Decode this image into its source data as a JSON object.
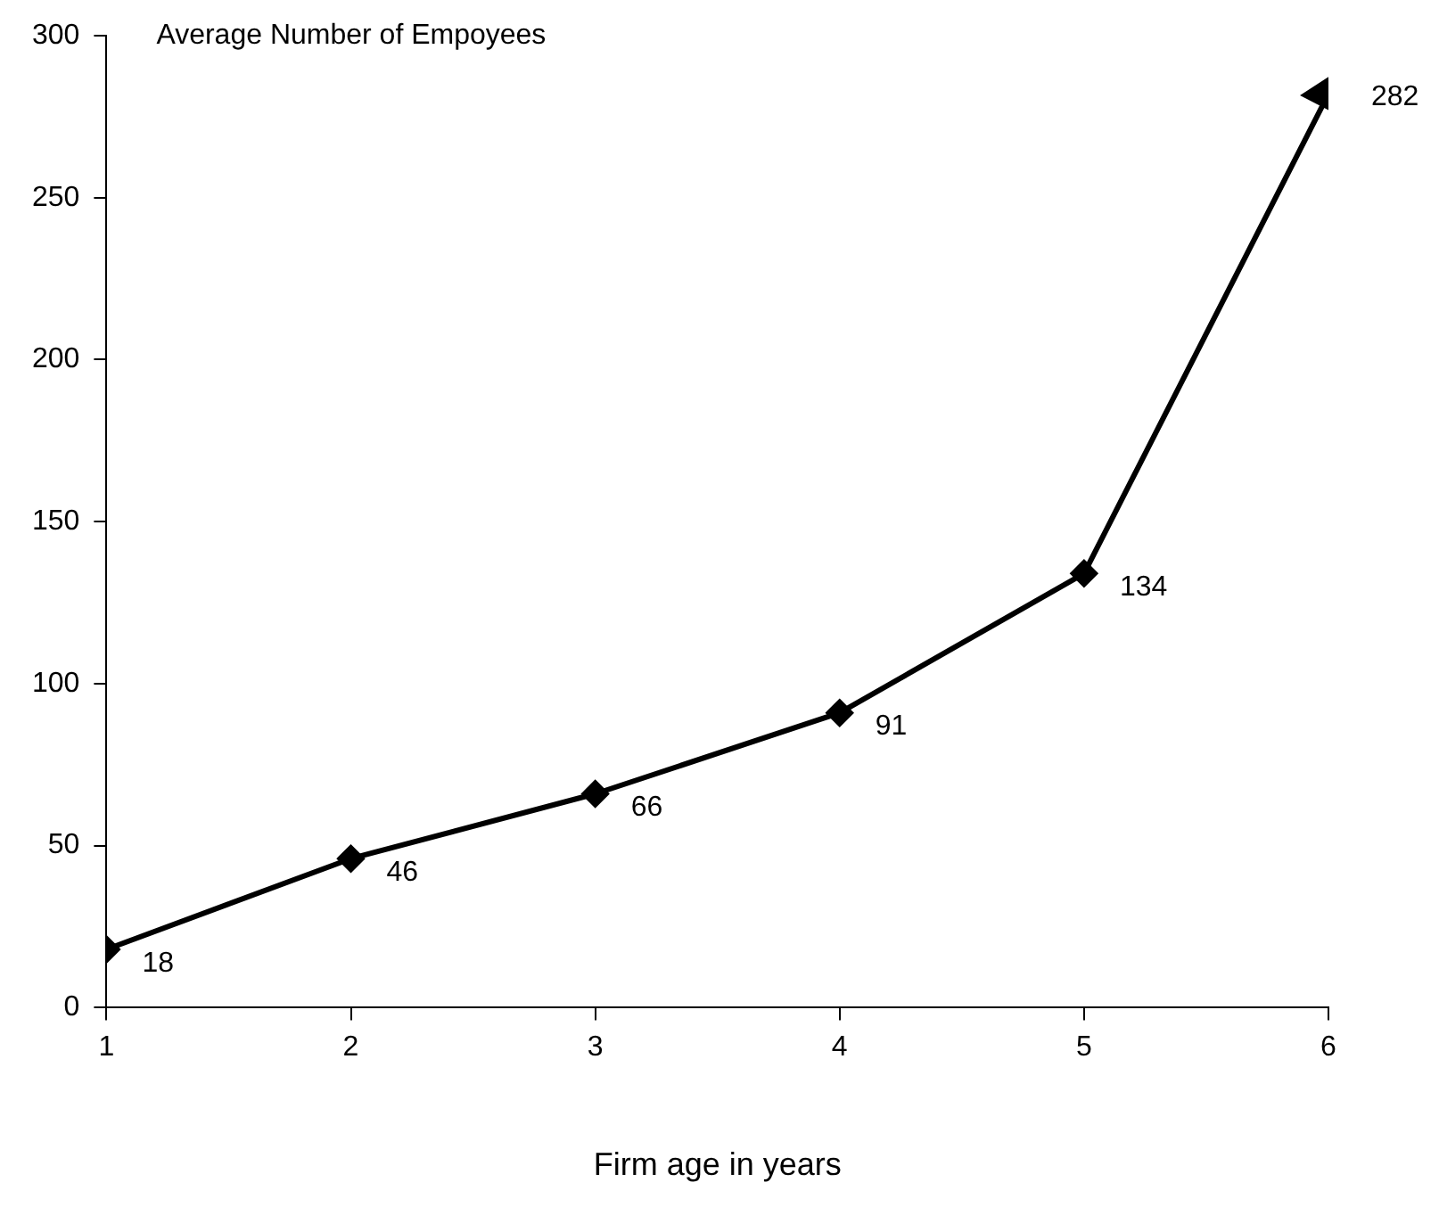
{
  "chart_data": {
    "type": "line",
    "title": "Average Number of Empoyees",
    "xlabel": "Firm age in years",
    "x": [
      1,
      2,
      3,
      4,
      5,
      6
    ],
    "series": [
      {
        "color": "#000000",
        "values": [
          18,
          46,
          66,
          91,
          134,
          282
        ]
      }
    ],
    "xlim": [
      1,
      6
    ],
    "xticks": [
      1,
      2,
      3,
      4,
      5,
      6
    ],
    "ylim": [
      0,
      300
    ],
    "yticks": [
      0,
      50,
      100,
      150,
      200,
      250,
      300
    ],
    "grid": false,
    "legend": false,
    "marker": "diamond",
    "line_style": "solid",
    "data_labels": true
  }
}
